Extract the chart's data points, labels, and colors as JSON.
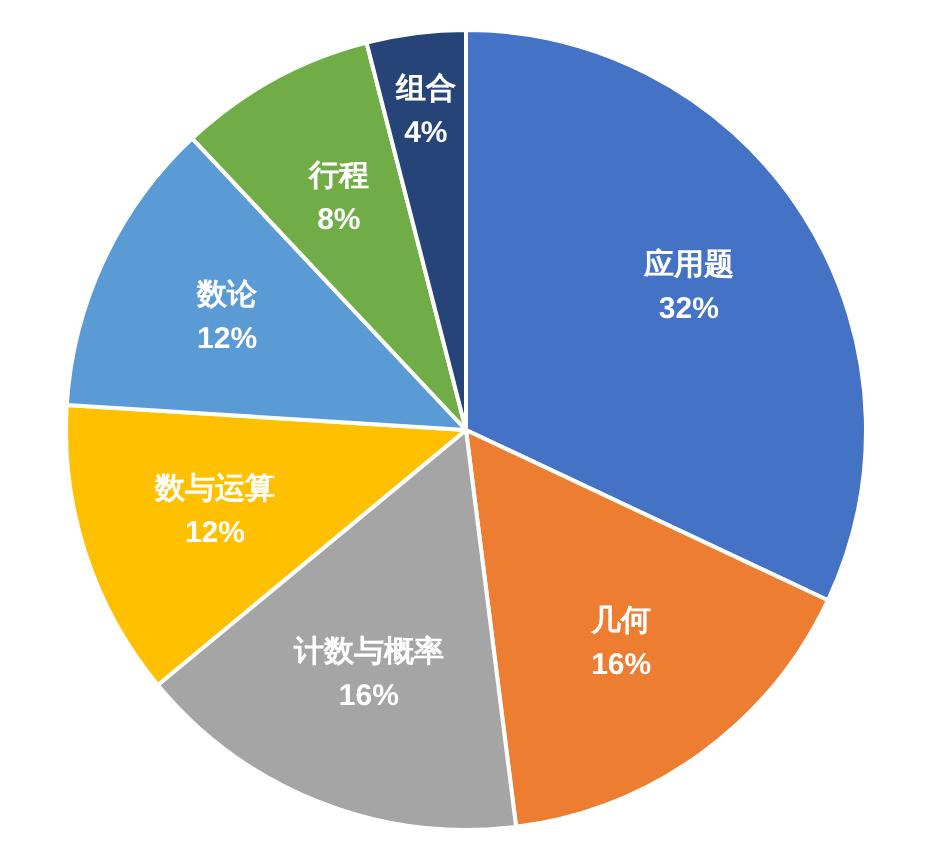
{
  "chart_data": {
    "type": "pie",
    "categories": [
      "应用题",
      "几何",
      "计数与概率",
      "数与运算",
      "数论",
      "行程",
      "组合"
    ],
    "values": [
      32,
      16,
      16,
      12,
      12,
      8,
      4
    ],
    "value_labels": [
      "32%",
      "16%",
      "16%",
      "12%",
      "12%",
      "8%",
      "4%"
    ],
    "colors": [
      "#4472c4",
      "#ed7d31",
      "#a5a5a5",
      "#ffc000",
      "#5b9bd5",
      "#70ad47",
      "#264478"
    ]
  }
}
